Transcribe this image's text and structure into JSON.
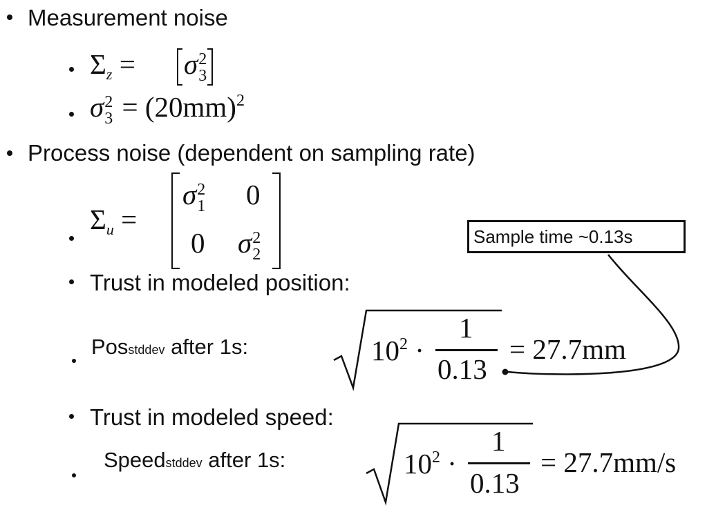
{
  "bullets": {
    "measurement_noise": "Measurement noise",
    "process_noise": "Process noise (dependent on sampling rate)",
    "trust_position": "Trust in modeled position:",
    "trust_speed": "Trust in modeled speed:"
  },
  "math": {
    "sigma_z_lhs": "Σ",
    "sigma_z_sub": "z",
    "sigma_z_eq": " = ",
    "sigma3": "σ",
    "sigma3_sup": "2",
    "sigma3_sub": "3",
    "sigma3_rhs": " = (20mm)",
    "sigma3_rhs_sup": "2",
    "sigma_u_lhs": "Σ",
    "sigma_u_sub": "u",
    "sigma_u_eq": " = ",
    "m11_sym": "σ",
    "m11_sup": "2",
    "m11_sub": "1",
    "m12": "0",
    "m21": "0",
    "m22_sym": "σ",
    "m22_sup": "2",
    "m22_sub": "2"
  },
  "pos_line": {
    "label_main": "Pos",
    "label_sub": "stddev",
    "label_tail": " after 1s:",
    "base": "10",
    "exp": "2",
    "dot": " · ",
    "num": "1",
    "den": "0.13",
    "result": "= 27.7mm"
  },
  "speed_line": {
    "label_main": "Speed",
    "label_sub": "stddev",
    "label_tail": " after 1s:",
    "base": "10",
    "exp": "2",
    "dot": " · ",
    "num": "1",
    "den": "0.13",
    "result": "= 27.7mm/s"
  },
  "callout": {
    "text": "Sample time ~0.13s"
  }
}
